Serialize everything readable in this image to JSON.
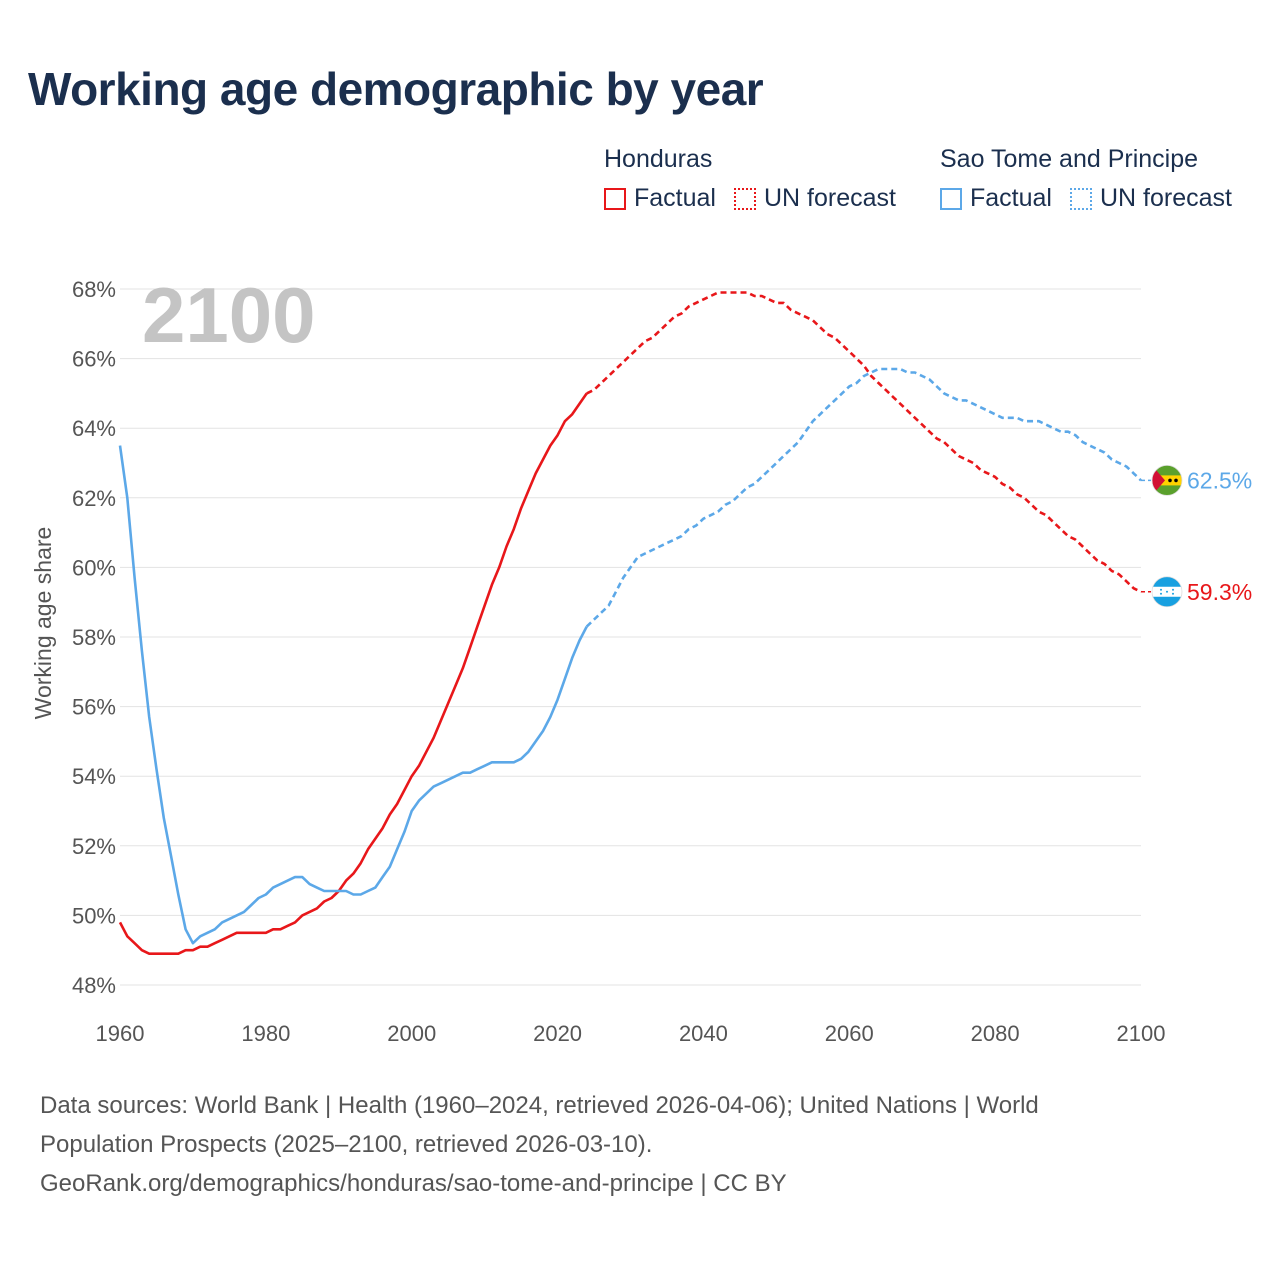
{
  "title": "Working age demographic by year",
  "legend": {
    "groups": [
      {
        "name": "Honduras",
        "color": "#e8171a",
        "factual_label": "Factual",
        "forecast_label": "UN forecast"
      },
      {
        "name": "Sao Tome and Principe",
        "color": "#5ca8e8",
        "factual_label": "Factual",
        "forecast_label": "UN forecast"
      }
    ]
  },
  "watermark_year": "2100",
  "footer": {
    "line1": "Data sources: World Bank | Health (1960–2024, retrieved 2026-04-06); United Nations | World",
    "line2": "Population Prospects (2025–2100, retrieved 2026-03-10).",
    "line3": "GeoRank.org/demographics/honduras/sao-tome-and-principe | CC BY"
  },
  "chart_data": {
    "type": "line",
    "title": "Working age demographic by year",
    "xlabel": "",
    "ylabel": "Working age share",
    "xlim": [
      1960,
      2100
    ],
    "ylim": [
      48,
      68
    ],
    "x_ticks": [
      1960,
      1980,
      2000,
      2020,
      2040,
      2060,
      2080,
      2100
    ],
    "y_ticks": [
      48,
      50,
      52,
      54,
      56,
      58,
      60,
      62,
      64,
      66,
      68
    ],
    "y_tick_suffix": "%",
    "grid": true,
    "factual_end_year": 2024,
    "series": [
      {
        "name": "Honduras",
        "color": "#e8171a",
        "end_label": "59.3%",
        "flag": "honduras-flag",
        "points": [
          [
            1960,
            49.8
          ],
          [
            1961,
            49.4
          ],
          [
            1962,
            49.2
          ],
          [
            1963,
            49.0
          ],
          [
            1964,
            48.9
          ],
          [
            1965,
            48.9
          ],
          [
            1966,
            48.9
          ],
          [
            1967,
            48.9
          ],
          [
            1968,
            48.9
          ],
          [
            1969,
            49.0
          ],
          [
            1970,
            49.0
          ],
          [
            1971,
            49.1
          ],
          [
            1972,
            49.1
          ],
          [
            1973,
            49.2
          ],
          [
            1974,
            49.3
          ],
          [
            1975,
            49.4
          ],
          [
            1976,
            49.5
          ],
          [
            1977,
            49.5
          ],
          [
            1978,
            49.5
          ],
          [
            1979,
            49.5
          ],
          [
            1980,
            49.5
          ],
          [
            1981,
            49.6
          ],
          [
            1982,
            49.6
          ],
          [
            1983,
            49.7
          ],
          [
            1984,
            49.8
          ],
          [
            1985,
            50.0
          ],
          [
            1986,
            50.1
          ],
          [
            1987,
            50.2
          ],
          [
            1988,
            50.4
          ],
          [
            1989,
            50.5
          ],
          [
            1990,
            50.7
          ],
          [
            1991,
            51.0
          ],
          [
            1992,
            51.2
          ],
          [
            1993,
            51.5
          ],
          [
            1994,
            51.9
          ],
          [
            1995,
            52.2
          ],
          [
            1996,
            52.5
          ],
          [
            1997,
            52.9
          ],
          [
            1998,
            53.2
          ],
          [
            1999,
            53.6
          ],
          [
            2000,
            54.0
          ],
          [
            2001,
            54.3
          ],
          [
            2002,
            54.7
          ],
          [
            2003,
            55.1
          ],
          [
            2004,
            55.6
          ],
          [
            2005,
            56.1
          ],
          [
            2006,
            56.6
          ],
          [
            2007,
            57.1
          ],
          [
            2008,
            57.7
          ],
          [
            2009,
            58.3
          ],
          [
            2010,
            58.9
          ],
          [
            2011,
            59.5
          ],
          [
            2012,
            60.0
          ],
          [
            2013,
            60.6
          ],
          [
            2014,
            61.1
          ],
          [
            2015,
            61.7
          ],
          [
            2016,
            62.2
          ],
          [
            2017,
            62.7
          ],
          [
            2018,
            63.1
          ],
          [
            2019,
            63.5
          ],
          [
            2020,
            63.8
          ],
          [
            2021,
            64.2
          ],
          [
            2022,
            64.4
          ],
          [
            2023,
            64.7
          ],
          [
            2024,
            65.0
          ],
          [
            2025,
            65.1
          ],
          [
            2026,
            65.3
          ],
          [
            2027,
            65.5
          ],
          [
            2028,
            65.7
          ],
          [
            2029,
            65.9
          ],
          [
            2030,
            66.1
          ],
          [
            2031,
            66.3
          ],
          [
            2032,
            66.5
          ],
          [
            2033,
            66.6
          ],
          [
            2034,
            66.8
          ],
          [
            2035,
            67.0
          ],
          [
            2036,
            67.2
          ],
          [
            2037,
            67.3
          ],
          [
            2038,
            67.5
          ],
          [
            2039,
            67.6
          ],
          [
            2040,
            67.7
          ],
          [
            2041,
            67.8
          ],
          [
            2042,
            67.9
          ],
          [
            2043,
            67.9
          ],
          [
            2044,
            67.9
          ],
          [
            2045,
            67.9
          ],
          [
            2046,
            67.9
          ],
          [
            2047,
            67.8
          ],
          [
            2048,
            67.8
          ],
          [
            2049,
            67.7
          ],
          [
            2050,
            67.6
          ],
          [
            2051,
            67.6
          ],
          [
            2052,
            67.4
          ],
          [
            2053,
            67.3
          ],
          [
            2054,
            67.2
          ],
          [
            2055,
            67.1
          ],
          [
            2056,
            66.9
          ],
          [
            2057,
            66.7
          ],
          [
            2058,
            66.6
          ],
          [
            2059,
            66.4
          ],
          [
            2060,
            66.2
          ],
          [
            2061,
            66.0
          ],
          [
            2062,
            65.8
          ],
          [
            2063,
            65.5
          ],
          [
            2064,
            65.3
          ],
          [
            2065,
            65.1
          ],
          [
            2066,
            64.9
          ],
          [
            2067,
            64.7
          ],
          [
            2068,
            64.5
          ],
          [
            2069,
            64.3
          ],
          [
            2070,
            64.1
          ],
          [
            2071,
            63.9
          ],
          [
            2072,
            63.7
          ],
          [
            2073,
            63.6
          ],
          [
            2074,
            63.4
          ],
          [
            2075,
            63.2
          ],
          [
            2076,
            63.1
          ],
          [
            2077,
            63.0
          ],
          [
            2078,
            62.8
          ],
          [
            2079,
            62.7
          ],
          [
            2080,
            62.6
          ],
          [
            2081,
            62.4
          ],
          [
            2082,
            62.3
          ],
          [
            2083,
            62.1
          ],
          [
            2084,
            62.0
          ],
          [
            2085,
            61.8
          ],
          [
            2086,
            61.6
          ],
          [
            2087,
            61.5
          ],
          [
            2088,
            61.3
          ],
          [
            2089,
            61.1
          ],
          [
            2090,
            60.9
          ],
          [
            2091,
            60.8
          ],
          [
            2092,
            60.6
          ],
          [
            2093,
            60.4
          ],
          [
            2094,
            60.2
          ],
          [
            2095,
            60.1
          ],
          [
            2096,
            59.9
          ],
          [
            2097,
            59.8
          ],
          [
            2098,
            59.6
          ],
          [
            2099,
            59.4
          ],
          [
            2100,
            59.3
          ]
        ]
      },
      {
        "name": "Sao Tome and Principe",
        "color": "#5ca8e8",
        "end_label": "62.5%",
        "flag": "sao-tome-flag",
        "points": [
          [
            1960,
            63.5
          ],
          [
            1961,
            62.0
          ],
          [
            1962,
            59.7
          ],
          [
            1963,
            57.6
          ],
          [
            1964,
            55.7
          ],
          [
            1965,
            54.2
          ],
          [
            1966,
            52.8
          ],
          [
            1967,
            51.7
          ],
          [
            1968,
            50.6
          ],
          [
            1969,
            49.6
          ],
          [
            1970,
            49.2
          ],
          [
            1971,
            49.4
          ],
          [
            1972,
            49.5
          ],
          [
            1973,
            49.6
          ],
          [
            1974,
            49.8
          ],
          [
            1975,
            49.9
          ],
          [
            1976,
            50.0
          ],
          [
            1977,
            50.1
          ],
          [
            1978,
            50.3
          ],
          [
            1979,
            50.5
          ],
          [
            1980,
            50.6
          ],
          [
            1981,
            50.8
          ],
          [
            1982,
            50.9
          ],
          [
            1983,
            51.0
          ],
          [
            1984,
            51.1
          ],
          [
            1985,
            51.1
          ],
          [
            1986,
            50.9
          ],
          [
            1987,
            50.8
          ],
          [
            1988,
            50.7
          ],
          [
            1989,
            50.7
          ],
          [
            1990,
            50.7
          ],
          [
            1991,
            50.7
          ],
          [
            1992,
            50.6
          ],
          [
            1993,
            50.6
          ],
          [
            1994,
            50.7
          ],
          [
            1995,
            50.8
          ],
          [
            1996,
            51.1
          ],
          [
            1997,
            51.4
          ],
          [
            1998,
            51.9
          ],
          [
            1999,
            52.4
          ],
          [
            2000,
            53.0
          ],
          [
            2001,
            53.3
          ],
          [
            2002,
            53.5
          ],
          [
            2003,
            53.7
          ],
          [
            2004,
            53.8
          ],
          [
            2005,
            53.9
          ],
          [
            2006,
            54.0
          ],
          [
            2007,
            54.1
          ],
          [
            2008,
            54.1
          ],
          [
            2009,
            54.2
          ],
          [
            2010,
            54.3
          ],
          [
            2011,
            54.4
          ],
          [
            2012,
            54.4
          ],
          [
            2013,
            54.4
          ],
          [
            2014,
            54.4
          ],
          [
            2015,
            54.5
          ],
          [
            2016,
            54.7
          ],
          [
            2017,
            55.0
          ],
          [
            2018,
            55.3
          ],
          [
            2019,
            55.7
          ],
          [
            2020,
            56.2
          ],
          [
            2021,
            56.8
          ],
          [
            2022,
            57.4
          ],
          [
            2023,
            57.9
          ],
          [
            2024,
            58.3
          ],
          [
            2025,
            58.5
          ],
          [
            2026,
            58.7
          ],
          [
            2027,
            58.9
          ],
          [
            2028,
            59.3
          ],
          [
            2029,
            59.7
          ],
          [
            2030,
            60.0
          ],
          [
            2031,
            60.3
          ],
          [
            2032,
            60.4
          ],
          [
            2033,
            60.5
          ],
          [
            2034,
            60.6
          ],
          [
            2035,
            60.7
          ],
          [
            2036,
            60.8
          ],
          [
            2037,
            60.9
          ],
          [
            2038,
            61.1
          ],
          [
            2039,
            61.2
          ],
          [
            2040,
            61.4
          ],
          [
            2041,
            61.5
          ],
          [
            2042,
            61.6
          ],
          [
            2043,
            61.8
          ],
          [
            2044,
            61.9
          ],
          [
            2045,
            62.1
          ],
          [
            2046,
            62.3
          ],
          [
            2047,
            62.4
          ],
          [
            2048,
            62.6
          ],
          [
            2049,
            62.8
          ],
          [
            2050,
            63.0
          ],
          [
            2051,
            63.2
          ],
          [
            2052,
            63.4
          ],
          [
            2053,
            63.6
          ],
          [
            2054,
            63.9
          ],
          [
            2055,
            64.2
          ],
          [
            2056,
            64.4
          ],
          [
            2057,
            64.6
          ],
          [
            2058,
            64.8
          ],
          [
            2059,
            65.0
          ],
          [
            2060,
            65.2
          ],
          [
            2061,
            65.3
          ],
          [
            2062,
            65.5
          ],
          [
            2063,
            65.6
          ],
          [
            2064,
            65.7
          ],
          [
            2065,
            65.7
          ],
          [
            2066,
            65.7
          ],
          [
            2067,
            65.7
          ],
          [
            2068,
            65.6
          ],
          [
            2069,
            65.6
          ],
          [
            2070,
            65.5
          ],
          [
            2071,
            65.4
          ],
          [
            2072,
            65.2
          ],
          [
            2073,
            65.0
          ],
          [
            2074,
            64.9
          ],
          [
            2075,
            64.8
          ],
          [
            2076,
            64.8
          ],
          [
            2077,
            64.7
          ],
          [
            2078,
            64.6
          ],
          [
            2079,
            64.5
          ],
          [
            2080,
            64.4
          ],
          [
            2081,
            64.3
          ],
          [
            2082,
            64.3
          ],
          [
            2083,
            64.3
          ],
          [
            2084,
            64.2
          ],
          [
            2085,
            64.2
          ],
          [
            2086,
            64.2
          ],
          [
            2087,
            64.1
          ],
          [
            2088,
            64.0
          ],
          [
            2089,
            63.9
          ],
          [
            2090,
            63.9
          ],
          [
            2091,
            63.8
          ],
          [
            2092,
            63.6
          ],
          [
            2093,
            63.5
          ],
          [
            2094,
            63.4
          ],
          [
            2095,
            63.3
          ],
          [
            2096,
            63.1
          ],
          [
            2097,
            63.0
          ],
          [
            2098,
            62.9
          ],
          [
            2099,
            62.7
          ],
          [
            2100,
            62.5
          ]
        ]
      }
    ]
  }
}
